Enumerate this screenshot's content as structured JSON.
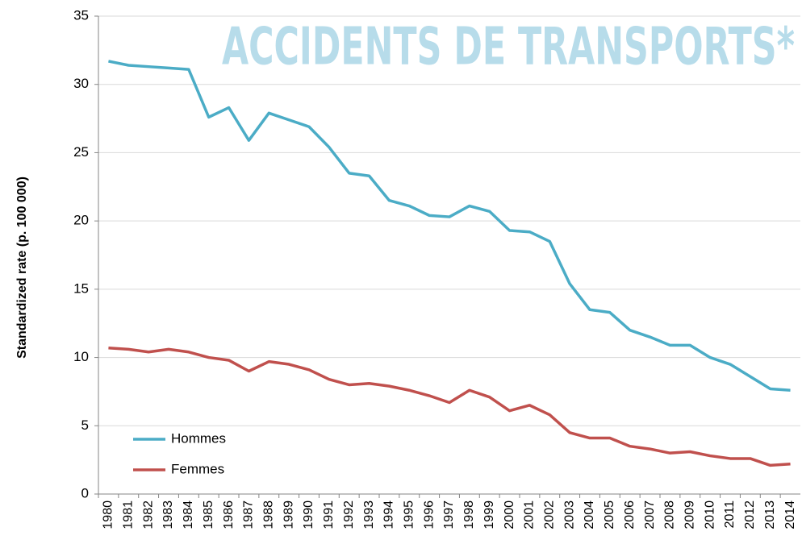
{
  "chart_data": {
    "type": "line",
    "title": "ACCIDENTS DE TRANSPORTS*",
    "y_label": "Standardized rate (p. 100 000)",
    "categories": [
      "1980",
      "1981",
      "1982",
      "1983",
      "1984",
      "1985",
      "1986",
      "1987",
      "1988",
      "1989",
      "1990",
      "1991",
      "1992",
      "1993",
      "1994",
      "1995",
      "1996",
      "1997",
      "1998",
      "1999",
      "2000",
      "2001",
      "2002",
      "2003",
      "2004",
      "2005",
      "2006",
      "2007",
      "2008",
      "2009",
      "2010",
      "2011",
      "2012",
      "2013",
      "2014"
    ],
    "series": [
      {
        "name": "Hommes",
        "color": "#4bacc6",
        "values": [
          31.7,
          31.4,
          31.3,
          31.2,
          31.1,
          27.6,
          28.3,
          25.9,
          27.9,
          27.4,
          26.9,
          25.4,
          23.5,
          23.3,
          21.5,
          21.1,
          20.4,
          20.3,
          21.1,
          20.7,
          19.3,
          19.2,
          18.5,
          15.4,
          13.5,
          13.3,
          12.0,
          11.5,
          10.9,
          10.9,
          10.0,
          9.5,
          8.6,
          7.7,
          7.6
        ]
      },
      {
        "name": "Femmes",
        "color": "#c0504d",
        "values": [
          10.7,
          10.6,
          10.4,
          10.6,
          10.4,
          10.0,
          9.8,
          9.0,
          9.7,
          9.5,
          9.1,
          8.4,
          8.0,
          8.1,
          7.9,
          7.6,
          7.2,
          6.7,
          7.6,
          7.1,
          6.1,
          6.5,
          5.8,
          4.5,
          4.1,
          4.1,
          3.5,
          3.3,
          3.0,
          3.1,
          2.8,
          2.6,
          2.6,
          2.1,
          2.2
        ]
      }
    ],
    "ylim": [
      0,
      35
    ],
    "yticks": [
      0,
      5,
      10,
      15,
      20,
      25,
      30,
      35
    ],
    "grid": true,
    "legend": "lower left"
  }
}
